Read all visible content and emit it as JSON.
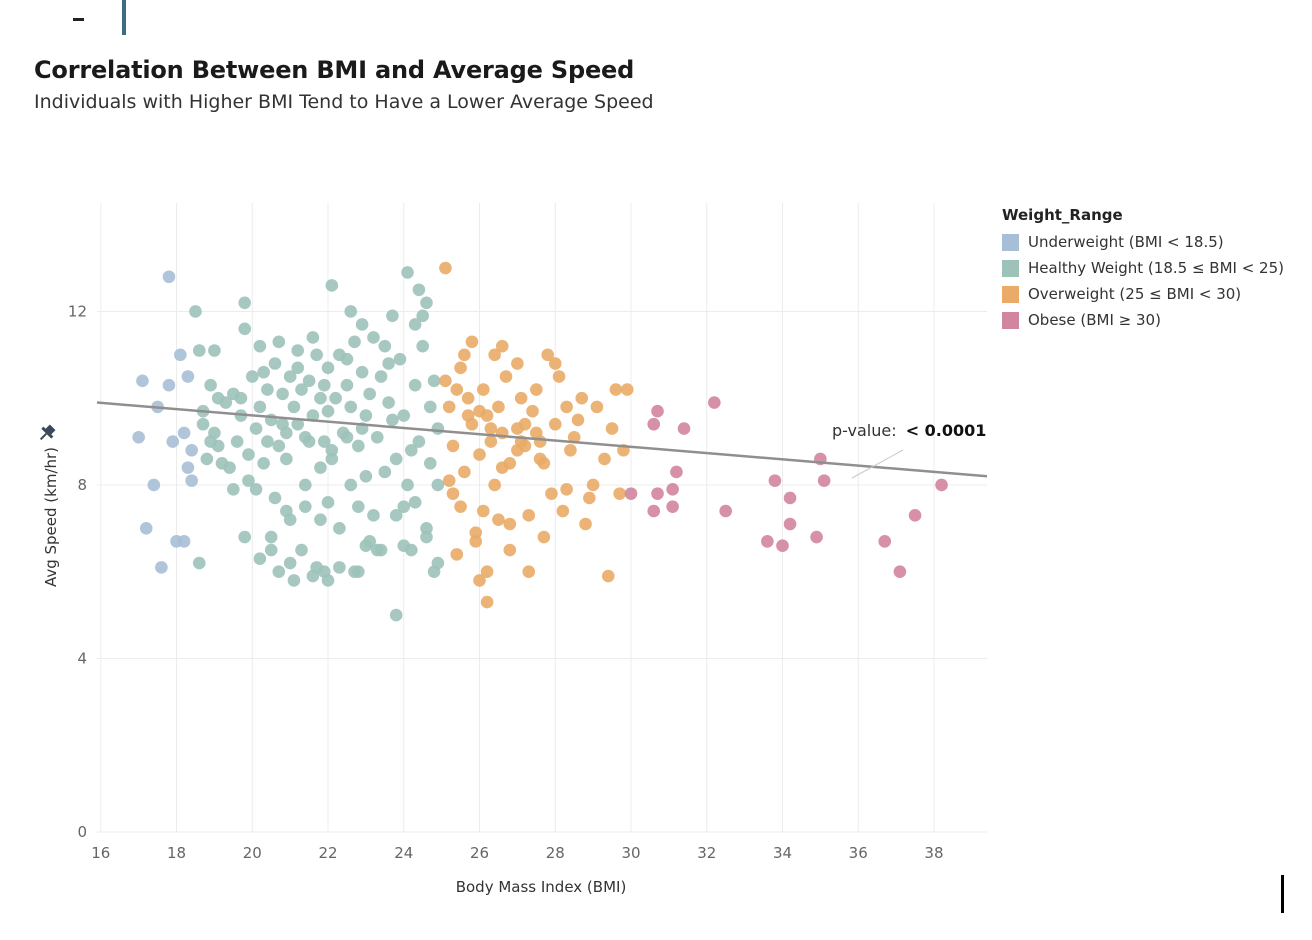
{
  "title": "Correlation Between BMI and Average Speed",
  "subtitle": "Individuals with Higher BMI Tend to Have a Lower Average Speed",
  "legend": {
    "title": "Weight_Range",
    "items": [
      {
        "label": "Underweight (BMI < 18.5)",
        "color": "#a7bfd6"
      },
      {
        "label": "Healthy Weight (18.5 ≤ BMI < 25)",
        "color": "#9dc2ba"
      },
      {
        "label": "Overweight (25 ≤ BMI < 30)",
        "color": "#e9ab67"
      },
      {
        "label": "Obese (BMI ≥ 30)",
        "color": "#d2859f"
      }
    ]
  },
  "annotation": {
    "label": "p-value:",
    "value": "< 0.0001"
  },
  "pin_icon": "pin-icon",
  "chart_data": {
    "type": "scatter",
    "xlabel": "Body Mass Index (BMI)",
    "ylabel": "Avg Speed (km/hr)",
    "xlim": [
      15.9,
      39.4
    ],
    "ylim": [
      0,
      14.5
    ],
    "x_ticks": [
      "16",
      "18",
      "20",
      "22",
      "24",
      "26",
      "28",
      "30",
      "32",
      "34",
      "36",
      "38"
    ],
    "y_ticks": [
      "0",
      "4",
      "8",
      "12"
    ],
    "grid": true,
    "legend_position": "right",
    "trend_line": {
      "x": [
        15.9,
        39.4
      ],
      "y": [
        9.9,
        8.2
      ],
      "color": "#8f8f8f"
    },
    "series": [
      {
        "name": "Underweight (BMI < 18.5)",
        "points": [
          [
            17.0,
            9.1
          ],
          [
            17.2,
            7.0
          ],
          [
            17.4,
            8.0
          ],
          [
            17.5,
            9.8
          ],
          [
            17.6,
            6.1
          ],
          [
            17.8,
            12.8
          ],
          [
            17.9,
            9.0
          ],
          [
            18.0,
            6.7
          ],
          [
            18.1,
            11.0
          ],
          [
            18.2,
            6.7
          ],
          [
            18.2,
            9.2
          ],
          [
            18.3,
            8.4
          ],
          [
            18.4,
            8.1
          ],
          [
            17.1,
            10.4
          ],
          [
            17.8,
            10.3
          ],
          [
            18.3,
            10.5
          ],
          [
            18.4,
            8.8
          ]
        ]
      },
      {
        "name": "Healthy Weight (18.5 ≤ BMI < 25)",
        "points": [
          [
            18.5,
            12.0
          ],
          [
            18.6,
            11.1
          ],
          [
            18.6,
            6.2
          ],
          [
            18.7,
            9.4
          ],
          [
            18.9,
            9.0
          ],
          [
            19.0,
            11.1
          ],
          [
            19.1,
            10.0
          ],
          [
            19.1,
            8.9
          ],
          [
            19.3,
            9.9
          ],
          [
            19.4,
            8.4
          ],
          [
            19.5,
            7.9
          ],
          [
            19.6,
            9.0
          ],
          [
            19.7,
            10.0
          ],
          [
            19.8,
            12.2
          ],
          [
            19.8,
            6.8
          ],
          [
            19.8,
            11.6
          ],
          [
            19.9,
            8.1
          ],
          [
            20.1,
            7.9
          ],
          [
            20.1,
            9.3
          ],
          [
            20.2,
            6.3
          ],
          [
            20.2,
            11.2
          ],
          [
            20.3,
            8.5
          ],
          [
            20.4,
            10.2
          ],
          [
            20.5,
            6.8
          ],
          [
            20.5,
            6.5
          ],
          [
            20.6,
            7.7
          ],
          [
            20.7,
            11.3
          ],
          [
            20.7,
            6.0
          ],
          [
            20.8,
            9.4
          ],
          [
            20.9,
            7.4
          ],
          [
            20.9,
            8.6
          ],
          [
            21.0,
            7.2
          ],
          [
            21.0,
            6.2
          ],
          [
            21.1,
            5.8
          ],
          [
            21.2,
            9.4
          ],
          [
            21.2,
            10.7
          ],
          [
            21.3,
            6.5
          ],
          [
            21.4,
            7.5
          ],
          [
            21.4,
            8.0
          ],
          [
            21.5,
            9.0
          ],
          [
            21.6,
            5.9
          ],
          [
            21.6,
            11.4
          ],
          [
            21.7,
            6.1
          ],
          [
            21.8,
            7.2
          ],
          [
            21.8,
            8.4
          ],
          [
            21.9,
            6.0
          ],
          [
            21.9,
            10.3
          ],
          [
            22.0,
            5.8
          ],
          [
            22.0,
            7.6
          ],
          [
            22.0,
            9.7
          ],
          [
            22.1,
            12.6
          ],
          [
            22.1,
            8.6
          ],
          [
            22.3,
            7.0
          ],
          [
            22.3,
            6.1
          ],
          [
            22.5,
            9.1
          ],
          [
            22.5,
            10.9
          ],
          [
            22.6,
            12.0
          ],
          [
            22.6,
            8.0
          ],
          [
            22.7,
            6.0
          ],
          [
            22.8,
            6.0
          ],
          [
            22.8,
            7.5
          ],
          [
            22.9,
            11.7
          ],
          [
            22.9,
            9.3
          ],
          [
            23.0,
            6.6
          ],
          [
            23.0,
            8.2
          ],
          [
            23.1,
            6.7
          ],
          [
            23.2,
            7.3
          ],
          [
            23.3,
            6.5
          ],
          [
            23.4,
            6.5
          ],
          [
            23.5,
            8.3
          ],
          [
            23.6,
            10.8
          ],
          [
            23.7,
            11.9
          ],
          [
            23.7,
            9.5
          ],
          [
            23.8,
            7.3
          ],
          [
            23.8,
            5.0
          ],
          [
            24.0,
            7.5
          ],
          [
            24.0,
            6.6
          ],
          [
            24.1,
            8.0
          ],
          [
            24.1,
            12.9
          ],
          [
            24.2,
            6.5
          ],
          [
            24.3,
            7.6
          ],
          [
            24.3,
            11.7
          ],
          [
            24.4,
            12.5
          ],
          [
            24.4,
            9.0
          ],
          [
            24.5,
            11.9
          ],
          [
            24.6,
            12.2
          ],
          [
            24.6,
            7.0
          ],
          [
            24.6,
            6.8
          ],
          [
            24.7,
            8.5
          ],
          [
            24.8,
            6.0
          ],
          [
            24.9,
            9.3
          ],
          [
            24.9,
            6.2
          ],
          [
            24.9,
            8.0
          ],
          [
            24.8,
            10.4
          ],
          [
            24.7,
            9.8
          ],
          [
            24.5,
            11.2
          ],
          [
            24.3,
            10.3
          ],
          [
            24.2,
            8.8
          ],
          [
            24.0,
            9.6
          ],
          [
            23.9,
            10.9
          ],
          [
            23.8,
            8.6
          ],
          [
            23.6,
            9.9
          ],
          [
            23.5,
            11.2
          ],
          [
            23.4,
            10.5
          ],
          [
            23.3,
            9.1
          ],
          [
            23.2,
            11.4
          ],
          [
            23.1,
            10.1
          ],
          [
            23.0,
            9.6
          ],
          [
            22.9,
            10.6
          ],
          [
            22.8,
            8.9
          ],
          [
            22.7,
            11.3
          ],
          [
            22.6,
            9.8
          ],
          [
            22.5,
            10.3
          ],
          [
            22.4,
            9.2
          ],
          [
            22.3,
            11.0
          ],
          [
            22.2,
            10.0
          ],
          [
            22.1,
            8.8
          ],
          [
            22.0,
            10.7
          ],
          [
            21.9,
            9.0
          ],
          [
            21.8,
            10.0
          ],
          [
            21.7,
            11.0
          ],
          [
            21.6,
            9.6
          ],
          [
            21.5,
            10.4
          ],
          [
            21.4,
            9.1
          ],
          [
            21.3,
            10.2
          ],
          [
            21.2,
            11.1
          ],
          [
            21.1,
            9.8
          ],
          [
            21.0,
            10.5
          ],
          [
            20.9,
            9.2
          ],
          [
            20.8,
            10.1
          ],
          [
            20.7,
            8.9
          ],
          [
            20.6,
            10.8
          ],
          [
            20.5,
            9.5
          ],
          [
            20.4,
            9.0
          ],
          [
            20.3,
            10.6
          ],
          [
            20.2,
            9.8
          ],
          [
            20.0,
            10.5
          ],
          [
            19.9,
            8.7
          ],
          [
            19.7,
            9.6
          ],
          [
            19.5,
            10.1
          ],
          [
            19.2,
            8.5
          ],
          [
            19.0,
            9.2
          ],
          [
            18.9,
            10.3
          ],
          [
            18.8,
            8.6
          ],
          [
            18.7,
            9.7
          ]
        ]
      },
      {
        "name": "Overweight (25 ≤ BMI < 30)",
        "points": [
          [
            25.1,
            13.0
          ],
          [
            25.2,
            8.1
          ],
          [
            25.3,
            7.8
          ],
          [
            25.4,
            6.4
          ],
          [
            25.5,
            10.7
          ],
          [
            25.5,
            7.5
          ],
          [
            25.6,
            11.0
          ],
          [
            25.7,
            9.6
          ],
          [
            25.8,
            11.3
          ],
          [
            25.9,
            6.7
          ],
          [
            25.9,
            6.9
          ],
          [
            26.0,
            5.8
          ],
          [
            26.1,
            7.4
          ],
          [
            26.1,
            10.2
          ],
          [
            26.2,
            6.0
          ],
          [
            26.2,
            5.3
          ],
          [
            26.3,
            9.0
          ],
          [
            26.4,
            11.0
          ],
          [
            26.5,
            7.2
          ],
          [
            26.6,
            11.2
          ],
          [
            26.6,
            8.4
          ],
          [
            26.7,
            10.5
          ],
          [
            26.8,
            7.1
          ],
          [
            26.8,
            6.5
          ],
          [
            27.0,
            10.8
          ],
          [
            27.0,
            8.8
          ],
          [
            27.1,
            10.0
          ],
          [
            27.2,
            9.4
          ],
          [
            27.3,
            7.3
          ],
          [
            27.3,
            6.0
          ],
          [
            27.5,
            10.2
          ],
          [
            27.6,
            9.0
          ],
          [
            27.7,
            6.8
          ],
          [
            27.7,
            8.5
          ],
          [
            27.8,
            11.0
          ],
          [
            27.9,
            7.8
          ],
          [
            28.0,
            9.4
          ],
          [
            28.0,
            10.8
          ],
          [
            28.1,
            10.5
          ],
          [
            28.2,
            7.4
          ],
          [
            28.3,
            7.9
          ],
          [
            28.3,
            9.8
          ],
          [
            28.4,
            8.8
          ],
          [
            28.5,
            9.1
          ],
          [
            28.7,
            10.0
          ],
          [
            28.8,
            7.1
          ],
          [
            28.9,
            7.7
          ],
          [
            29.0,
            8.0
          ],
          [
            29.1,
            9.8
          ],
          [
            29.3,
            8.6
          ],
          [
            29.4,
            5.9
          ],
          [
            29.5,
            9.3
          ],
          [
            29.6,
            10.2
          ],
          [
            29.7,
            7.8
          ],
          [
            29.8,
            8.8
          ],
          [
            29.9,
            10.2
          ],
          [
            25.3,
            8.9
          ],
          [
            25.6,
            8.3
          ],
          [
            25.8,
            9.4
          ],
          [
            26.0,
            8.7
          ],
          [
            26.2,
            9.6
          ],
          [
            26.4,
            8.0
          ],
          [
            26.6,
            9.2
          ],
          [
            26.8,
            8.5
          ],
          [
            27.0,
            9.3
          ],
          [
            27.2,
            8.9
          ],
          [
            27.4,
            9.7
          ],
          [
            27.6,
            8.6
          ],
          [
            25.2,
            9.8
          ],
          [
            25.4,
            10.2
          ],
          [
            25.1,
            10.4
          ],
          [
            25.7,
            10.0
          ],
          [
            26.0,
            9.7
          ],
          [
            26.3,
            9.3
          ],
          [
            26.5,
            9.8
          ],
          [
            27.1,
            9.0
          ],
          [
            27.5,
            9.2
          ],
          [
            28.6,
            9.5
          ]
        ]
      },
      {
        "name": "Obese (BMI ≥ 30)",
        "points": [
          [
            30.0,
            7.8
          ],
          [
            30.6,
            9.4
          ],
          [
            30.6,
            7.4
          ],
          [
            30.7,
            9.7
          ],
          [
            30.7,
            7.8
          ],
          [
            31.1,
            7.9
          ],
          [
            31.1,
            7.5
          ],
          [
            31.2,
            8.3
          ],
          [
            31.4,
            9.3
          ],
          [
            32.2,
            9.9
          ],
          [
            32.5,
            7.4
          ],
          [
            33.6,
            6.7
          ],
          [
            33.8,
            8.1
          ],
          [
            34.0,
            6.6
          ],
          [
            34.2,
            7.1
          ],
          [
            34.2,
            7.7
          ],
          [
            34.9,
            6.8
          ],
          [
            35.0,
            8.6
          ],
          [
            35.1,
            8.1
          ],
          [
            36.7,
            6.7
          ],
          [
            37.1,
            6.0
          ],
          [
            37.5,
            7.3
          ],
          [
            38.2,
            8.0
          ]
        ]
      }
    ]
  }
}
